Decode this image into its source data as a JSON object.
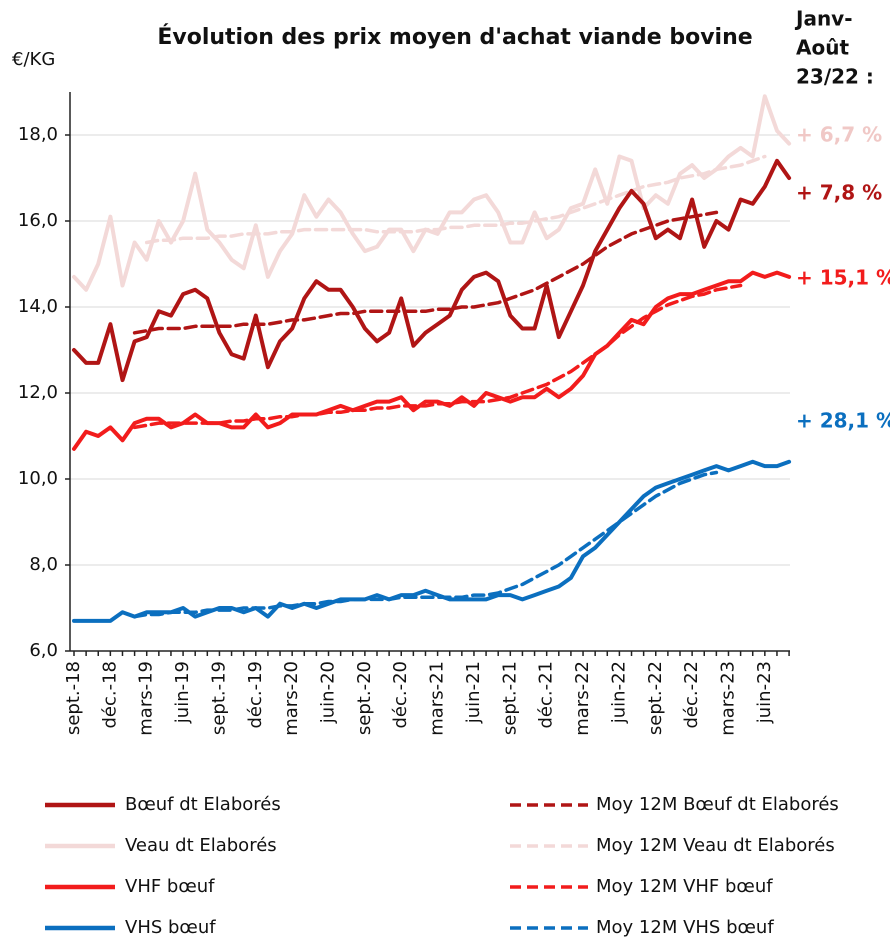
{
  "chart_data": {
    "type": "line",
    "title": "Évolution des prix moyen d'achat viande bovine",
    "y_label": "€/KG",
    "change_header": [
      "Janv-",
      "Août",
      "23/22 :"
    ],
    "categories": [
      "sept.-18",
      null,
      null,
      "déc.-18",
      null,
      null,
      "mars-19",
      null,
      null,
      "juin-19",
      null,
      null,
      "sept.-19",
      null,
      null,
      "déc.-19",
      null,
      null,
      "mars-20",
      null,
      null,
      "juin-20",
      null,
      null,
      "sept.-20",
      null,
      null,
      "déc.-20",
      null,
      null,
      "mars-21",
      null,
      null,
      "juin-21",
      null,
      null,
      "sept.-21",
      null,
      null,
      "déc.-21",
      null,
      null,
      "mars-22",
      null,
      null,
      "juin-22",
      null,
      null,
      "sept.-22",
      null,
      null,
      "déc.-22",
      null,
      null,
      "mars-23",
      null,
      null,
      "juin-23",
      null,
      null
    ],
    "ylim": [
      6,
      19
    ],
    "yticks": [
      {
        "value": 6,
        "label": "6,0"
      },
      {
        "value": 8,
        "label": "8,0"
      },
      {
        "value": 10,
        "label": "10,0"
      },
      {
        "value": 12,
        "label": "12,0"
      },
      {
        "value": 14,
        "label": "14,0"
      },
      {
        "value": 16,
        "label": "16,0"
      },
      {
        "value": 18,
        "label": "18,0"
      }
    ],
    "grid": true,
    "series": [
      {
        "name": "Bœuf dt Elaborés",
        "color": "#b01515",
        "dash": false,
        "change": "+ 7,8 %",
        "values": [
          13.0,
          12.7,
          12.7,
          13.6,
          12.3,
          13.2,
          13.3,
          13.9,
          13.8,
          14.3,
          14.4,
          14.2,
          13.4,
          12.9,
          12.8,
          13.8,
          12.6,
          13.2,
          13.5,
          14.2,
          14.6,
          14.4,
          14.4,
          14.0,
          13.5,
          13.2,
          13.4,
          14.2,
          13.1,
          13.4,
          13.6,
          13.8,
          14.4,
          14.7,
          14.8,
          14.6,
          13.8,
          13.5,
          13.5,
          14.5,
          13.3,
          13.9,
          14.5,
          15.3,
          15.8,
          16.3,
          16.7,
          16.4,
          15.6,
          15.8,
          15.6,
          16.5,
          15.4,
          16.0,
          15.8,
          16.5,
          16.4,
          16.8,
          17.4,
          17.0
        ]
      },
      {
        "name": "Moy 12M Bœuf dt Elaborés",
        "color": "#b01515",
        "dash": true,
        "values": [
          null,
          null,
          null,
          null,
          null,
          13.4,
          13.45,
          13.5,
          13.5,
          13.5,
          13.55,
          13.55,
          13.55,
          13.55,
          13.6,
          13.6,
          13.6,
          13.65,
          13.7,
          13.7,
          13.75,
          13.8,
          13.85,
          13.85,
          13.9,
          13.9,
          13.9,
          13.9,
          13.9,
          13.9,
          13.95,
          13.95,
          14.0,
          14.0,
          14.05,
          14.1,
          14.2,
          14.3,
          14.4,
          14.55,
          14.7,
          14.85,
          15.0,
          15.2,
          15.4,
          15.55,
          15.7,
          15.8,
          15.9,
          16.0,
          16.05,
          16.1,
          16.15,
          16.2,
          null,
          null,
          null,
          null,
          null,
          null
        ]
      },
      {
        "name": "Veau dt Elaborés",
        "color": "#f3d9d8",
        "dash": false,
        "change": "+ 6,7 %",
        "values": [
          14.7,
          14.4,
          15.0,
          16.1,
          14.5,
          15.5,
          15.1,
          16.0,
          15.5,
          16.0,
          17.1,
          15.8,
          15.5,
          15.1,
          14.9,
          15.9,
          14.7,
          15.3,
          15.7,
          16.6,
          16.1,
          16.5,
          16.2,
          15.7,
          15.3,
          15.4,
          15.8,
          15.8,
          15.3,
          15.8,
          15.7,
          16.2,
          16.2,
          16.5,
          16.6,
          16.2,
          15.5,
          15.5,
          16.2,
          15.6,
          15.8,
          16.3,
          16.4,
          17.2,
          16.4,
          17.5,
          17.4,
          16.3,
          16.6,
          16.4,
          17.1,
          17.3,
          17.0,
          17.2,
          17.5,
          17.7,
          17.5,
          18.9,
          18.1,
          17.8
        ]
      },
      {
        "name": "Moy 12M Veau dt Elaborés",
        "color": "#f3d9d8",
        "dash": true,
        "values": [
          null,
          null,
          null,
          null,
          null,
          null,
          15.5,
          15.55,
          15.55,
          15.6,
          15.6,
          15.6,
          15.65,
          15.65,
          15.7,
          15.7,
          15.7,
          15.75,
          15.75,
          15.8,
          15.8,
          15.8,
          15.8,
          15.8,
          15.8,
          15.75,
          15.75,
          15.75,
          15.75,
          15.8,
          15.8,
          15.85,
          15.85,
          15.9,
          15.9,
          15.9,
          15.95,
          15.95,
          16.0,
          16.05,
          16.1,
          16.2,
          16.3,
          16.4,
          16.5,
          16.6,
          16.7,
          16.8,
          16.85,
          16.9,
          17.0,
          17.05,
          17.1,
          17.2,
          17.25,
          17.3,
          17.4,
          17.5,
          null,
          null
        ]
      },
      {
        "name": "VHF bœuf",
        "color": "#f21c1c",
        "dash": false,
        "change": "+ 15,1 %",
        "values": [
          10.7,
          11.1,
          11.0,
          11.2,
          10.9,
          11.3,
          11.4,
          11.4,
          11.2,
          11.3,
          11.5,
          11.3,
          11.3,
          11.2,
          11.2,
          11.5,
          11.2,
          11.3,
          11.5,
          11.5,
          11.5,
          11.6,
          11.7,
          11.6,
          11.7,
          11.8,
          11.8,
          11.9,
          11.6,
          11.8,
          11.8,
          11.7,
          11.9,
          11.7,
          12.0,
          11.9,
          11.8,
          11.9,
          11.9,
          12.1,
          11.9,
          12.1,
          12.4,
          12.9,
          13.1,
          13.4,
          13.7,
          13.6,
          14.0,
          14.2,
          14.3,
          14.3,
          14.4,
          14.5,
          14.6,
          14.6,
          14.8,
          14.7,
          14.8,
          14.7
        ]
      },
      {
        "name": "Moy 12M VHF bœuf",
        "color": "#f21c1c",
        "dash": true,
        "values": [
          null,
          null,
          null,
          null,
          null,
          11.2,
          11.25,
          11.3,
          11.3,
          11.3,
          11.3,
          11.3,
          11.3,
          11.35,
          11.35,
          11.4,
          11.4,
          11.45,
          11.45,
          11.5,
          11.5,
          11.55,
          11.55,
          11.6,
          11.6,
          11.65,
          11.65,
          11.7,
          11.7,
          11.7,
          11.75,
          11.75,
          11.8,
          11.8,
          11.8,
          11.85,
          11.9,
          12.0,
          12.1,
          12.2,
          12.35,
          12.5,
          12.7,
          12.9,
          13.1,
          13.35,
          13.55,
          13.75,
          13.9,
          14.05,
          14.15,
          14.25,
          14.3,
          14.4,
          14.45,
          14.5,
          null,
          null,
          null,
          null
        ]
      },
      {
        "name": "VHS bœuf",
        "color": "#0b6fbf",
        "dash": false,
        "change": "+ 28,1 %",
        "values": [
          6.7,
          6.7,
          6.7,
          6.7,
          6.9,
          6.8,
          6.9,
          6.9,
          6.9,
          7.0,
          6.8,
          6.9,
          7.0,
          7.0,
          6.9,
          7.0,
          6.8,
          7.1,
          7.0,
          7.1,
          7.0,
          7.1,
          7.2,
          7.2,
          7.2,
          7.3,
          7.2,
          7.3,
          7.3,
          7.4,
          7.3,
          7.2,
          7.2,
          7.2,
          7.2,
          7.3,
          7.3,
          7.2,
          7.3,
          7.4,
          7.5,
          7.7,
          8.2,
          8.4,
          8.7,
          9.0,
          9.3,
          9.6,
          9.8,
          9.9,
          10.0,
          10.1,
          10.2,
          10.3,
          10.2,
          10.3,
          10.4,
          10.3,
          10.3,
          10.4
        ]
      },
      {
        "name": "Moy 12M VHS bœuf",
        "color": "#0b6fbf",
        "dash": true,
        "values": [
          null,
          null,
          null,
          null,
          null,
          6.8,
          6.85,
          6.85,
          6.9,
          6.9,
          6.9,
          6.95,
          6.95,
          6.95,
          7.0,
          7.0,
          7.0,
          7.05,
          7.05,
          7.1,
          7.1,
          7.15,
          7.15,
          7.2,
          7.2,
          7.2,
          7.2,
          7.25,
          7.25,
          7.25,
          7.25,
          7.25,
          7.25,
          7.3,
          7.3,
          7.35,
          7.45,
          7.55,
          7.7,
          7.85,
          8.0,
          8.2,
          8.4,
          8.6,
          8.8,
          9.0,
          9.2,
          9.4,
          9.6,
          9.75,
          9.9,
          10.0,
          10.1,
          10.15,
          null,
          null,
          null,
          null,
          null,
          null
        ]
      }
    ]
  }
}
